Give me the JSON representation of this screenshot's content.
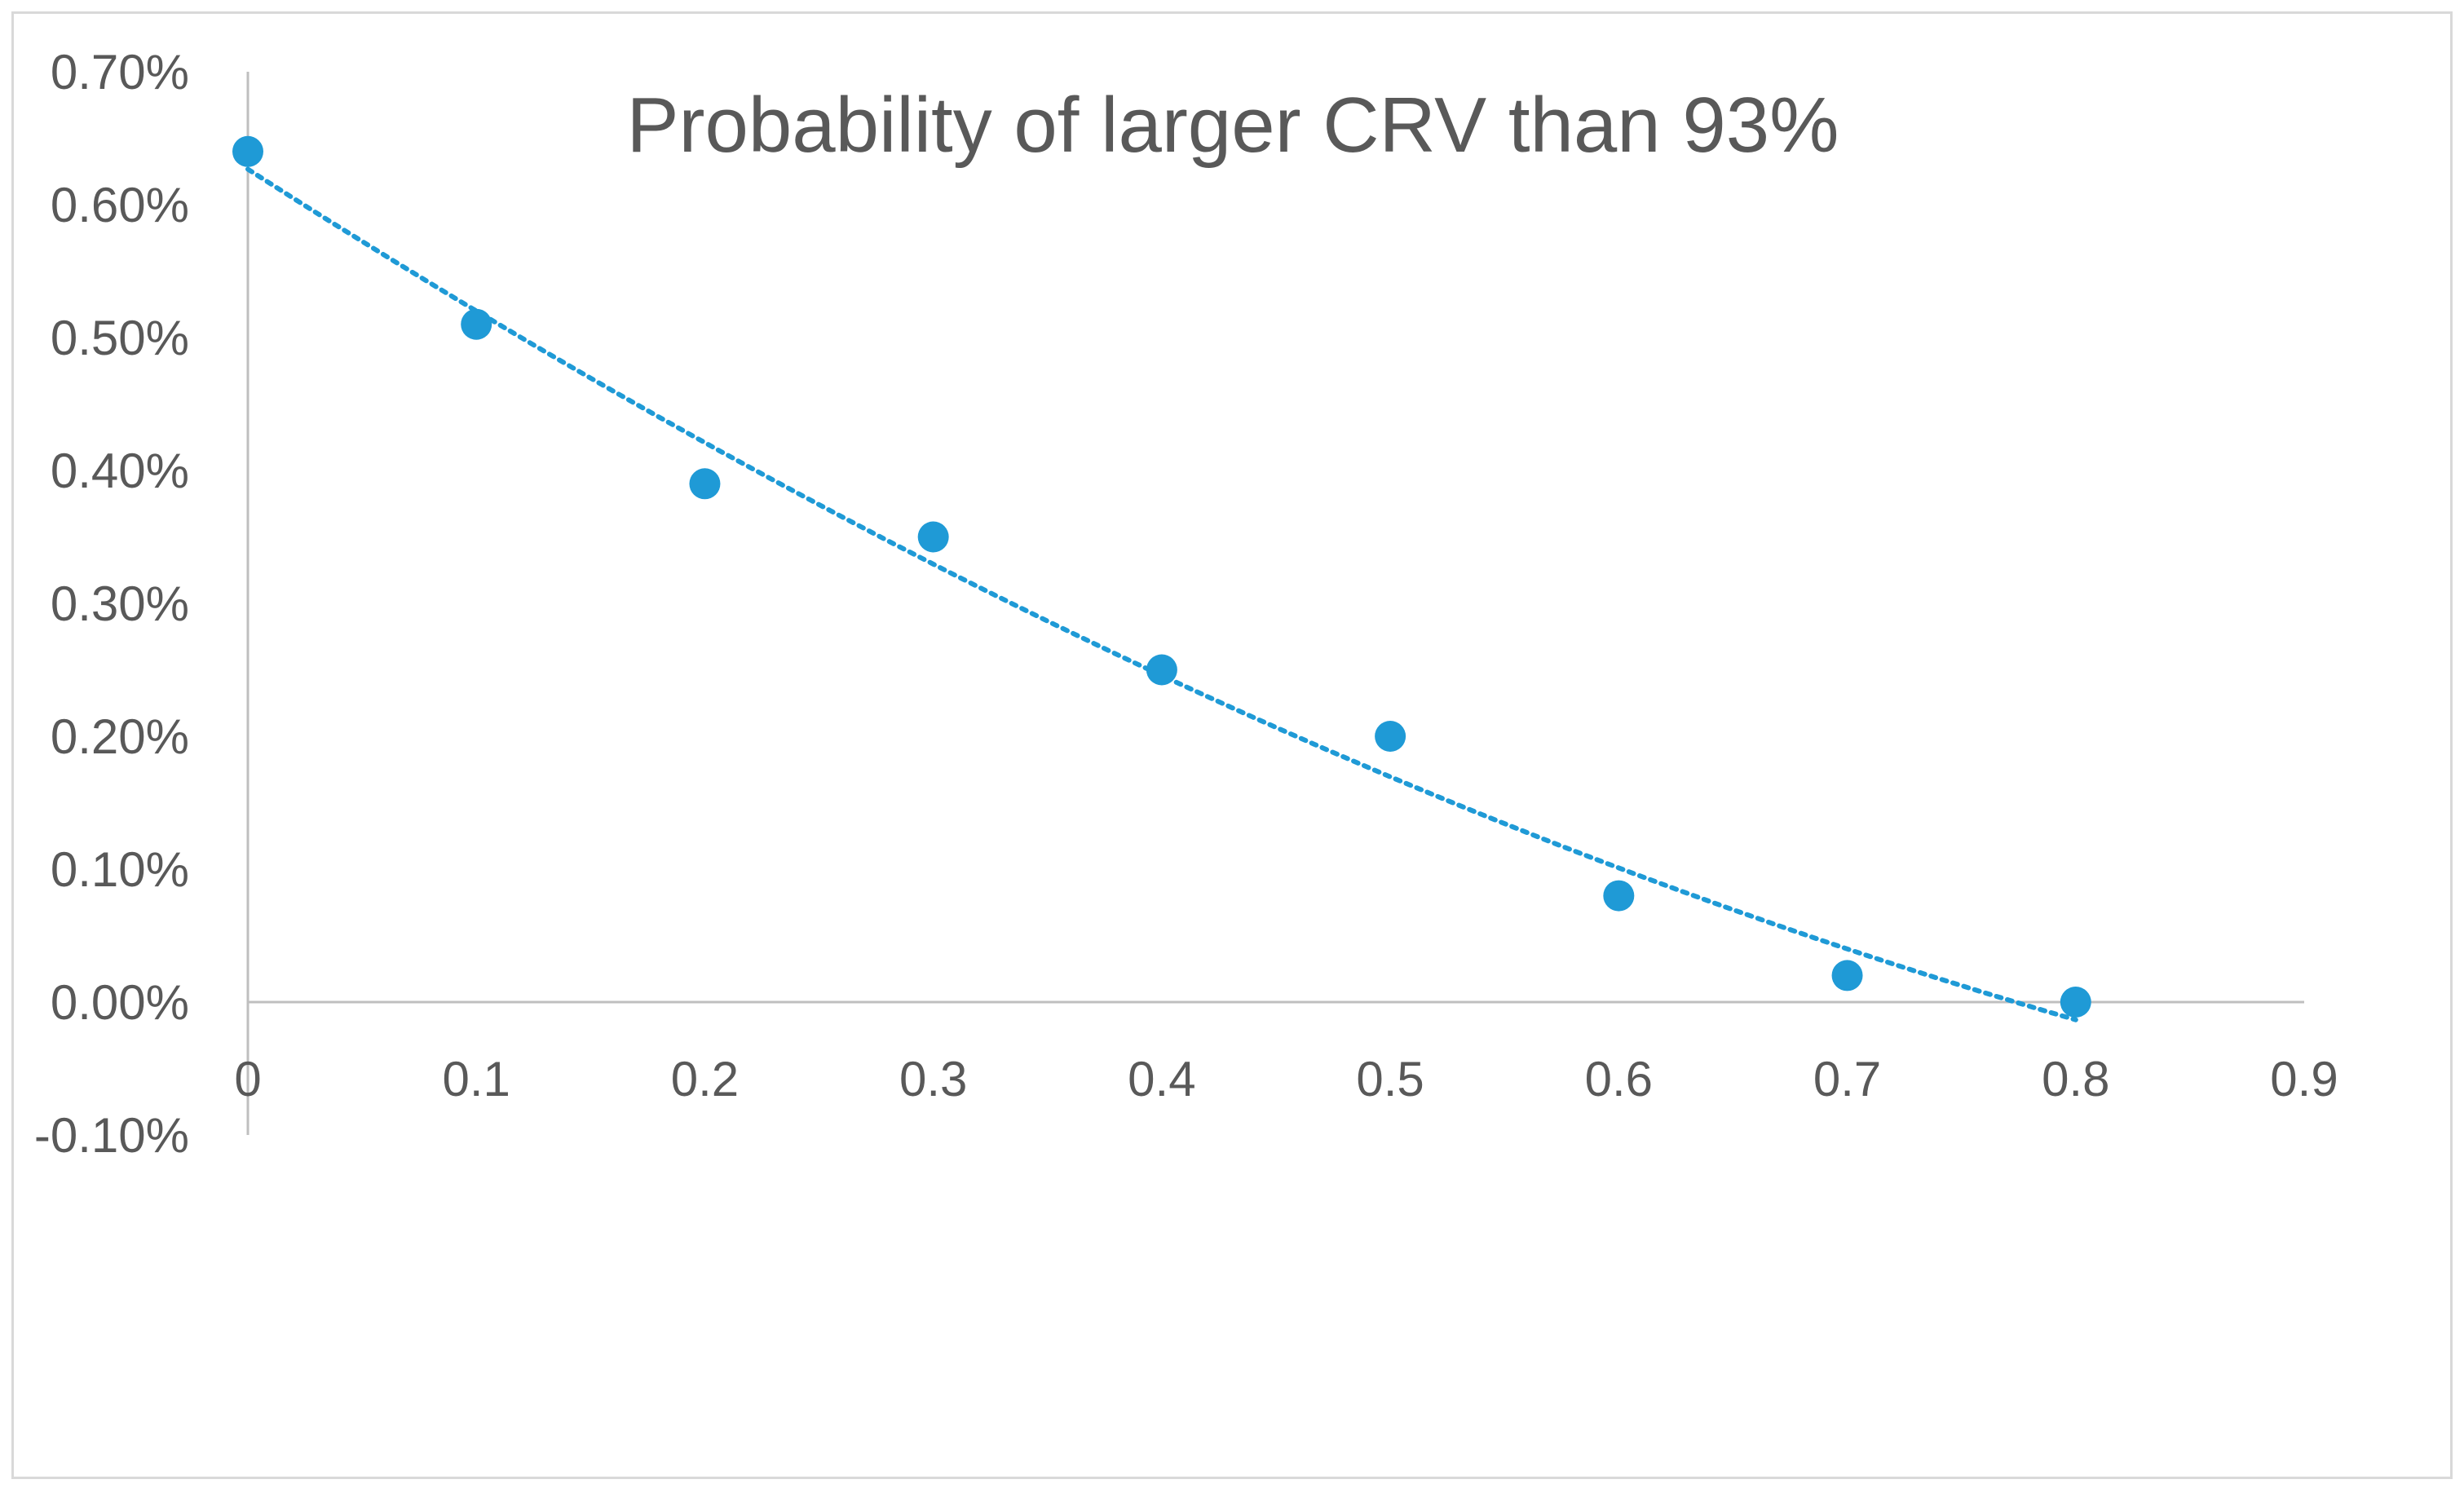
{
  "chart_data": {
    "type": "scatter",
    "title": "Probability of larger CRV than 93%",
    "xlabel": "",
    "ylabel": "",
    "xlim": [
      0,
      0.9
    ],
    "ylim": [
      -0.001,
      0.007
    ],
    "x_ticks": [
      0,
      0.1,
      0.2,
      0.3,
      0.4,
      0.5,
      0.6,
      0.7,
      0.8,
      0.9
    ],
    "x_tick_labels": [
      "0",
      "0.1",
      "0.2",
      "0.3",
      "0.4",
      "0.5",
      "0.6",
      "0.7",
      "0.8",
      "0.9"
    ],
    "y_ticks": [
      0.007,
      0.006,
      0.005,
      0.004,
      0.003,
      0.002,
      0.001,
      0,
      -0.001
    ],
    "y_tick_labels": [
      "0.70%",
      "0.60%",
      "0.50%",
      "0.40%",
      "0.30%",
      "0.20%",
      "0.10%",
      "0.00%",
      "-0.10%"
    ],
    "grid": false,
    "legend": "none",
    "series": [
      {
        "name": "Probability",
        "x": [
          0,
          0.1,
          0.2,
          0.3,
          0.4,
          0.5,
          0.6,
          0.7,
          0.8
        ],
        "values": [
          0.0064,
          0.0051,
          0.0039,
          0.0035,
          0.0025,
          0.002,
          0.0008,
          0.0002,
          0.0
        ],
        "color": "#1f9ad6"
      }
    ],
    "trendline": {
      "type": "polynomial",
      "order": 2,
      "color": "#1f9ad6",
      "style": "dotted",
      "x_range": [
        0,
        0.8
      ]
    }
  },
  "colors": {
    "axis": "#bfbfbf",
    "text": "#595959",
    "frame": "#d9d9d9"
  }
}
